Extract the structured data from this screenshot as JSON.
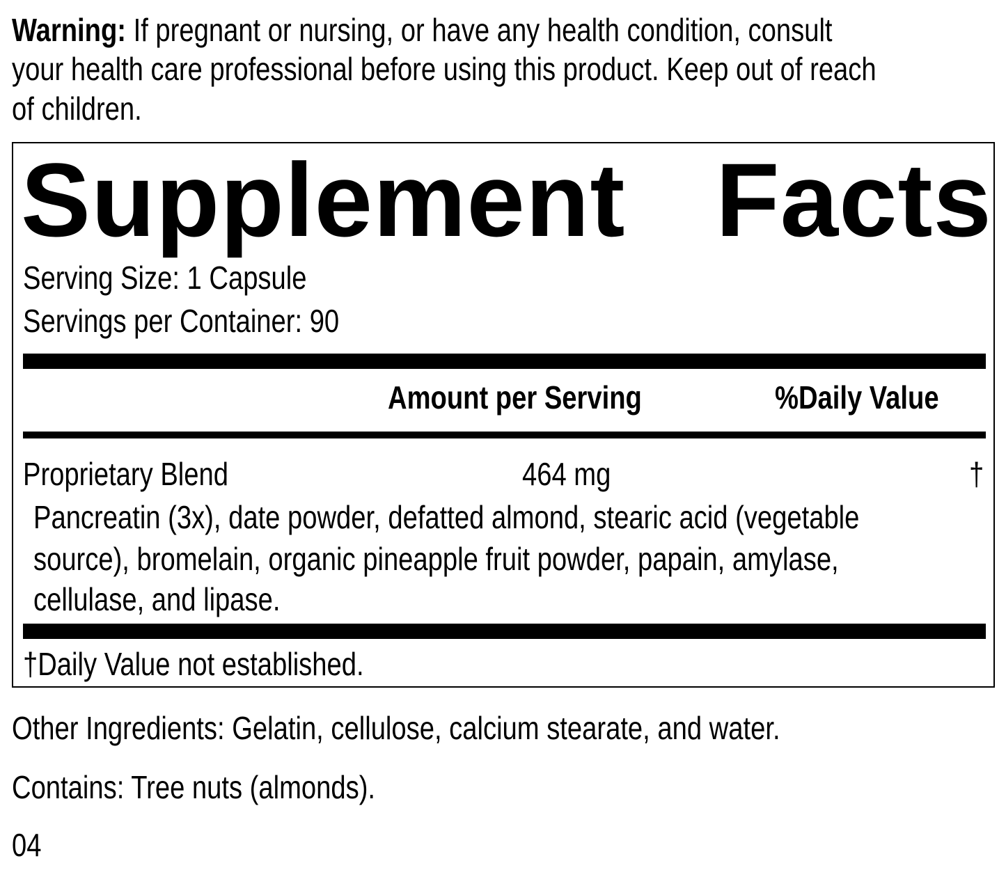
{
  "warning": {
    "label": "Warning:",
    "line1": " If pregnant or nursing, or have any health condition, consult",
    "line2": "your health care professional before using this product. Keep out of reach",
    "line3": "of children."
  },
  "facts": {
    "title_word1": "Supplement",
    "title_word2": "Facts",
    "serving_size": "Serving Size: 1 Capsule",
    "servings_per_container": "Servings per Container: 90",
    "header_amount": "Amount per Serving",
    "header_dv": "%Daily Value",
    "rows": [
      {
        "name": "Proprietary Blend",
        "amount": "464 mg",
        "dv": "†"
      }
    ],
    "blend_lines": [
      "Pancreatin (3x), date powder, defatted almond, stearic acid (vegetable",
      "source), bromelain, organic pineapple fruit powder, papain, amylase,",
      "cellulase, and lipase."
    ],
    "footnote": "†Daily Value not established."
  },
  "other_ingredients": "Other Ingredients: Gelatin, cellulose, calcium stearate, and water.",
  "contains": "Contains: Tree nuts (almonds).",
  "code": "04"
}
